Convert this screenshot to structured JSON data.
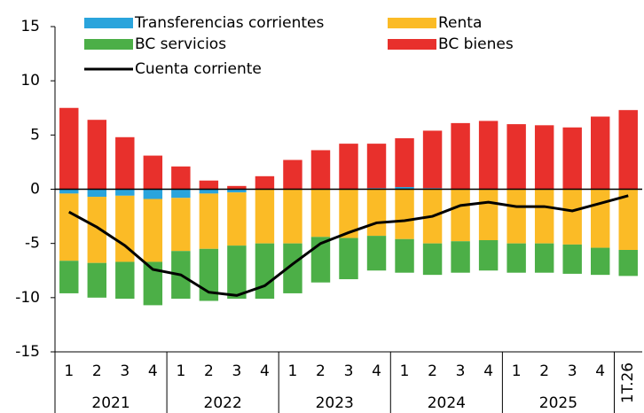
{
  "chart_data": {
    "type": "bar",
    "categories": [
      "1",
      "2",
      "3",
      "4",
      "1",
      "2",
      "3",
      "4",
      "1",
      "2",
      "3",
      "4",
      "1",
      "2",
      "3",
      "4",
      "1",
      "2",
      "3",
      "4",
      "1T.26"
    ],
    "year_labels": [
      "2021",
      "2022",
      "2023",
      "2024",
      "2025"
    ],
    "ylim": [
      -15,
      15
    ],
    "yticks": [
      -15,
      -10,
      -5,
      0,
      5,
      10,
      15
    ],
    "grid": false,
    "series": [
      {
        "name": "Transferencias corrientes",
        "color": "#2aa4dc",
        "values": [
          -0.4,
          -0.7,
          -0.6,
          -0.9,
          -0.8,
          -0.4,
          -0.3,
          0,
          0,
          0,
          0,
          0.1,
          0.2,
          0.1,
          0,
          0,
          0,
          0,
          0,
          0,
          0
        ]
      },
      {
        "name": "Renta",
        "color": "#fbbb26",
        "values": [
          -6.2,
          -6.1,
          -6.1,
          -5.8,
          -4.9,
          -5.1,
          -4.9,
          -5.0,
          -5.0,
          -4.4,
          -4.5,
          -4.3,
          -4.6,
          -5.0,
          -4.8,
          -4.7,
          -5.0,
          -5.0,
          -5.1,
          -5.4,
          -5.6
        ]
      },
      {
        "name": "BC servicios",
        "color": "#4caf47",
        "values": [
          -3.0,
          -3.2,
          -3.4,
          -4.0,
          -4.4,
          -4.8,
          -4.9,
          -5.1,
          -4.6,
          -4.2,
          -3.8,
          -3.2,
          -3.1,
          -2.9,
          -2.9,
          -2.8,
          -2.7,
          -2.7,
          -2.7,
          -2.5,
          -2.4
        ]
      },
      {
        "name": "BC bienes",
        "color": "#e8302c",
        "values": [
          7.5,
          6.4,
          4.8,
          3.1,
          2.1,
          0.8,
          0.3,
          1.2,
          2.7,
          3.6,
          4.2,
          4.1,
          4.5,
          5.3,
          6.1,
          6.3,
          6.0,
          5.9,
          5.7,
          6.7,
          7.3
        ]
      },
      {
        "name": "Cuenta corriente",
        "type": "line",
        "color": "#000000",
        "values": [
          -2.1,
          -3.5,
          -5.2,
          -7.4,
          -7.9,
          -9.5,
          -9.8,
          -8.9,
          -6.9,
          -5.0,
          -4.0,
          -3.1,
          -2.9,
          -2.5,
          -1.5,
          -1.2,
          -1.6,
          -1.6,
          -2.0,
          -1.3,
          -0.6
        ]
      }
    ]
  }
}
